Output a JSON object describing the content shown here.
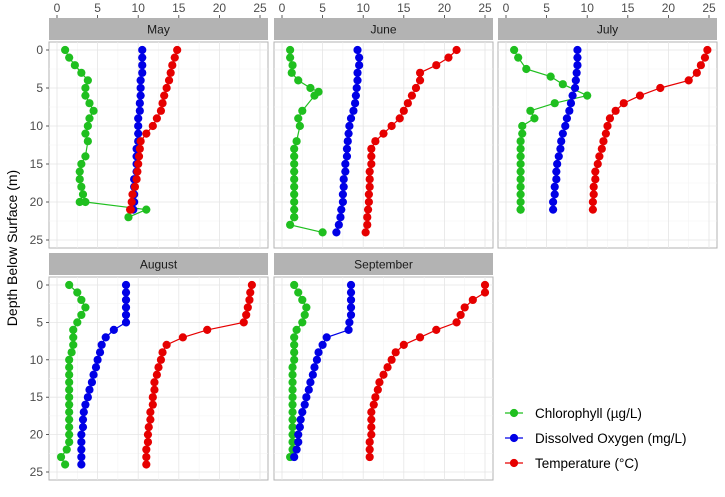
{
  "chart_data": {
    "type": "line",
    "ylabel": "Depth Below Surface (m)",
    "xlabel": "",
    "xlim": [
      0,
      25
    ],
    "ylim": [
      25,
      0
    ],
    "x_ticks": [
      0,
      5,
      10,
      15,
      20,
      25
    ],
    "y_ticks": [
      0,
      5,
      10,
      15,
      20,
      25
    ],
    "grid": true,
    "legend_position": "bottom-right",
    "series_meta": [
      {
        "key": "chl",
        "name": "Chlorophyll (µg/L)",
        "color": "#1fbf1f"
      },
      {
        "key": "do",
        "name": "Dissolved Oxygen (mg/L)",
        "color": "#0000e6"
      },
      {
        "key": "temp",
        "name": "Temperature (°C)",
        "color": "#e60000"
      }
    ],
    "panels": [
      {
        "title": "May",
        "chl": {
          "x": [
            1,
            1.5,
            2.2,
            3,
            3.8,
            3.5,
            3.5,
            4,
            4.5,
            4,
            3.8,
            3.5,
            3.8,
            3.5,
            3,
            2.8,
            2.8,
            3,
            3.2,
            2.8,
            3.5,
            11,
            8.8
          ],
          "y": [
            0,
            1,
            2,
            3,
            4,
            5,
            6,
            7,
            8,
            9,
            10,
            11,
            12,
            14,
            15,
            16,
            17,
            18,
            19,
            20,
            20,
            21,
            22
          ]
        },
        "do": {
          "x": [
            10.5,
            10.5,
            10.5,
            10.5,
            10.3,
            10.3,
            10.3,
            10.2,
            10.2,
            10,
            10,
            10,
            10,
            9.8,
            9.8,
            9.8,
            9.8,
            9.5,
            9.5,
            9.5,
            9.5,
            9.4
          ],
          "y": [
            0,
            1,
            2,
            3,
            4,
            5,
            6,
            7,
            8,
            9,
            10,
            11,
            12,
            13,
            14,
            15,
            16,
            17,
            18,
            19,
            20,
            21
          ]
        },
        "temp": {
          "x": [
            14.8,
            14.5,
            14.2,
            14,
            13.8,
            13.5,
            13.2,
            13,
            12.8,
            12.3,
            11.8,
            11,
            10.3,
            10.2,
            10.1,
            10,
            9.9,
            9.8,
            9.6,
            9.3,
            9.2,
            9.1,
            9
          ],
          "y": [
            0,
            1,
            2,
            3,
            4,
            5,
            6,
            7,
            8,
            9,
            10,
            11,
            12,
            13,
            14,
            15,
            16,
            17,
            18,
            19,
            20,
            21,
            21
          ]
        }
      },
      {
        "title": "June",
        "chl": {
          "x": [
            1,
            1,
            1.3,
            1.2,
            2,
            3.5,
            4.5,
            4,
            2.5,
            2,
            2.2,
            1.8,
            1.5,
            1.5,
            1.5,
            1.5,
            1.5,
            1.5,
            1.5,
            1.5,
            1.5,
            1.5,
            1.5,
            1,
            5
          ],
          "y": [
            0,
            1,
            2,
            3,
            4,
            5,
            5.5,
            6,
            8,
            9,
            10,
            12,
            13,
            14,
            15,
            16,
            17,
            18,
            19,
            20,
            21,
            22,
            22,
            23,
            24
          ]
        },
        "do": {
          "x": [
            9.3,
            9.5,
            9.5,
            9.3,
            9.3,
            9.2,
            9.1,
            9,
            8.8,
            8.5,
            8.3,
            8.2,
            8.1,
            8,
            8,
            7.8,
            7.8,
            7.6,
            7.6,
            7.5,
            7.5,
            7.3,
            7.2,
            7,
            6.7
          ],
          "y": [
            0,
            1,
            2,
            3,
            4,
            5,
            6,
            7,
            8,
            9,
            10,
            11,
            12,
            13,
            14,
            15,
            16,
            17,
            18,
            19,
            20,
            21,
            22,
            23,
            24
          ]
        },
        "temp": {
          "x": [
            21.5,
            20.5,
            19,
            17,
            17,
            16.5,
            16,
            15.5,
            15,
            14.5,
            13.5,
            12.5,
            11.5,
            11,
            11,
            11,
            10.8,
            10.8,
            10.8,
            10.7,
            10.7,
            10.6,
            10.5,
            10.5,
            10.3
          ],
          "y": [
            0,
            1,
            2,
            3,
            4,
            5,
            6,
            7,
            8,
            9,
            10,
            11,
            12,
            13,
            14,
            15,
            16,
            17,
            18,
            19,
            20,
            21,
            22,
            23,
            24
          ]
        }
      },
      {
        "title": "July",
        "chl": {
          "x": [
            1,
            1.5,
            2.5,
            5.5,
            7,
            10,
            6,
            3,
            3.5,
            2,
            2,
            1.8,
            1.8,
            1.8,
            1.8,
            1.8,
            1.8,
            1.8,
            1.8,
            1.8,
            1.8,
            1.8
          ],
          "y": [
            0,
            1,
            2.5,
            3.5,
            4.5,
            6,
            7,
            8,
            9,
            10,
            11,
            12,
            13,
            14,
            15,
            16,
            17,
            18,
            19,
            20,
            21,
            21
          ]
        },
        "do": {
          "x": [
            8.8,
            8.8,
            8.8,
            8.7,
            8.6,
            8.5,
            8.2,
            8,
            7.8,
            7.5,
            7.3,
            7,
            6.8,
            6.7,
            6.5,
            6.3,
            6.2,
            6.2,
            6,
            6,
            5.8,
            5.8
          ],
          "y": [
            0,
            1,
            2,
            3,
            4,
            5,
            6,
            7,
            8,
            9,
            10,
            11,
            12,
            13,
            14,
            15,
            16,
            17,
            18,
            19,
            20,
            21
          ]
        },
        "temp": {
          "x": [
            24.8,
            24.5,
            24,
            23.5,
            22.5,
            19,
            16.5,
            14.5,
            13.5,
            12.8,
            12.5,
            12.3,
            12,
            11.8,
            11.5,
            11.3,
            11,
            11,
            10.8,
            10.8,
            10.7,
            10.7
          ],
          "y": [
            0,
            1,
            2,
            3,
            4,
            5,
            6,
            7,
            8,
            9,
            10,
            11,
            12,
            13,
            14,
            15,
            16,
            17,
            18,
            19,
            20,
            21
          ]
        }
      },
      {
        "title": "August",
        "chl": {
          "x": [
            1.5,
            2.5,
            3,
            3.5,
            3,
            2.5,
            2,
            2,
            2,
            1.8,
            1.5,
            1.5,
            1.5,
            1.5,
            1.5,
            1.5,
            1.5,
            1.5,
            1.5,
            1.5,
            1.5,
            1.5,
            1.2,
            0.5,
            1
          ],
          "y": [
            0,
            1,
            2,
            3,
            4,
            5,
            6,
            7,
            8,
            9,
            10,
            11,
            12,
            13,
            14,
            15,
            16,
            17,
            18,
            19,
            20,
            21,
            22,
            23,
            24
          ]
        },
        "do": {
          "x": [
            8.5,
            8.5,
            8.5,
            8.5,
            8.5,
            8.5,
            7,
            6,
            5.5,
            5.3,
            5,
            4.8,
            4.5,
            4.3,
            4,
            3.8,
            3.5,
            3.3,
            3.2,
            3.2,
            3,
            3,
            3,
            3,
            3
          ],
          "y": [
            0,
            1,
            2,
            3,
            4,
            5,
            6,
            7,
            8,
            9,
            10,
            11,
            12,
            13,
            14,
            15,
            16,
            17,
            18,
            19,
            20,
            21,
            22,
            23,
            24
          ]
        },
        "temp": {
          "x": [
            24,
            23.8,
            23.7,
            23.5,
            23.3,
            23,
            18.5,
            15.5,
            13.5,
            13,
            12.8,
            12.5,
            12.3,
            12,
            12,
            11.8,
            11.8,
            11.5,
            11.5,
            11.3,
            11.2,
            11.2,
            11,
            11,
            11
          ],
          "y": [
            0,
            1,
            2,
            3,
            4,
            5,
            6,
            7,
            8,
            9,
            10,
            11,
            12,
            13,
            14,
            15,
            16,
            17,
            18,
            19,
            20,
            21,
            22,
            23,
            24
          ]
        }
      },
      {
        "title": "September",
        "chl": {
          "x": [
            1.5,
            2,
            2.5,
            3,
            2.8,
            2.5,
            1.8,
            1.5,
            1.5,
            1.5,
            1.5,
            1.3,
            1.3,
            1.3,
            1.3,
            1.3,
            1.3,
            1.3,
            1.3,
            1.3,
            1.3,
            1.3,
            1.3,
            1
          ],
          "y": [
            0,
            1,
            2,
            3,
            4,
            5,
            6,
            7,
            8,
            9,
            10,
            11,
            12,
            13,
            14,
            15,
            16,
            17,
            18,
            19,
            20,
            21,
            22,
            23
          ]
        },
        "do": {
          "x": [
            8.5,
            8.5,
            8.5,
            8.5,
            8.5,
            8.3,
            8.2,
            5.5,
            5,
            4.5,
            4.3,
            4,
            3.8,
            3.5,
            3.3,
            3,
            2.8,
            2.5,
            2.3,
            2.2,
            2,
            2,
            1.8,
            1.5
          ],
          "y": [
            0,
            1,
            2,
            3,
            4,
            5,
            6,
            7,
            8,
            9,
            10,
            11,
            12,
            13,
            14,
            15,
            16,
            17,
            18,
            19,
            20,
            21,
            22,
            23
          ]
        },
        "temp": {
          "x": [
            25,
            25,
            23.5,
            22.5,
            22,
            21.5,
            19,
            17,
            15,
            14,
            13.5,
            13,
            12.5,
            12,
            11.8,
            11.5,
            11.3,
            11,
            11,
            11,
            11,
            10.8,
            10.8,
            10.8
          ],
          "y": [
            0,
            1,
            2,
            3,
            4,
            5,
            6,
            7,
            8,
            9,
            10,
            11,
            12,
            13,
            14,
            15,
            16,
            17,
            18,
            19,
            20,
            21,
            22,
            23
          ]
        }
      }
    ]
  }
}
